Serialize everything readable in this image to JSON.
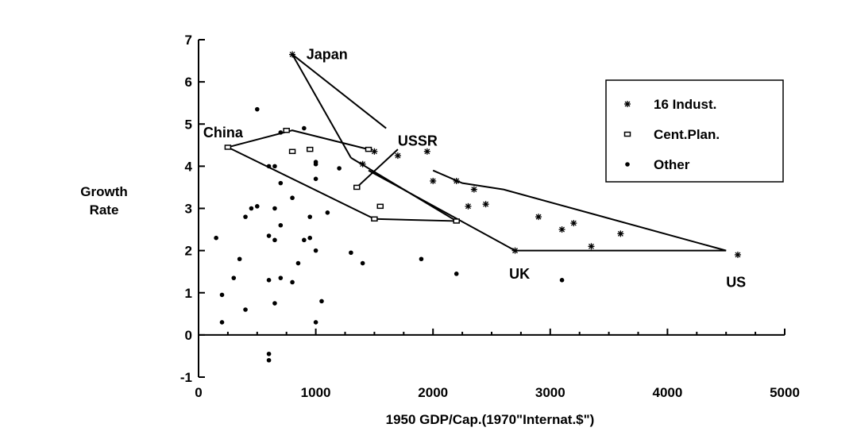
{
  "chart_data": {
    "type": "scatter",
    "title": "",
    "xlabel": "1950 GDP/Cap.(1970\"Internat.$\")",
    "ylabel_lines": [
      "Growth",
      "Rate"
    ],
    "xlim": [
      0,
      5000
    ],
    "ylim": [
      -1,
      7
    ],
    "x_ticks": [
      0,
      1000,
      2000,
      3000,
      4000,
      5000
    ],
    "y_ticks": [
      -1,
      0,
      1,
      2,
      3,
      4,
      5,
      6,
      7
    ],
    "legend_position": "top-right",
    "series": [
      {
        "name": "16 Indust.",
        "marker": "star",
        "points": [
          [
            800,
            6.65
          ],
          [
            1400,
            4.05
          ],
          [
            1500,
            4.35
          ],
          [
            1700,
            4.25
          ],
          [
            1950,
            4.35
          ],
          [
            2000,
            3.65
          ],
          [
            2200,
            3.65
          ],
          [
            2350,
            3.45
          ],
          [
            2300,
            3.05
          ],
          [
            2450,
            3.1
          ],
          [
            2700,
            2.0
          ],
          [
            2900,
            2.8
          ],
          [
            3100,
            2.5
          ],
          [
            3200,
            2.65
          ],
          [
            3350,
            2.1
          ],
          [
            3600,
            2.4
          ],
          [
            4600,
            1.9
          ]
        ]
      },
      {
        "name": "Cent.Plan.",
        "marker": "square",
        "points": [
          [
            250,
            4.45
          ],
          [
            750,
            4.85
          ],
          [
            1450,
            4.4
          ],
          [
            800,
            4.35
          ],
          [
            950,
            4.4
          ],
          [
            1350,
            3.5
          ],
          [
            1550,
            3.05
          ],
          [
            1500,
            2.75
          ],
          [
            2200,
            2.7
          ]
        ]
      },
      {
        "name": "Other",
        "marker": "dot",
        "points": [
          [
            500,
            5.35
          ],
          [
            900,
            4.9
          ],
          [
            700,
            4.8
          ],
          [
            650,
            4.0
          ],
          [
            1000,
            4.05
          ],
          [
            1000,
            4.1
          ],
          [
            1200,
            3.95
          ],
          [
            600,
            4.0
          ],
          [
            700,
            3.6
          ],
          [
            1000,
            3.7
          ],
          [
            450,
            3.0
          ],
          [
            500,
            3.05
          ],
          [
            650,
            3.0
          ],
          [
            800,
            3.25
          ],
          [
            1100,
            2.9
          ],
          [
            400,
            2.8
          ],
          [
            700,
            2.6
          ],
          [
            950,
            2.8
          ],
          [
            150,
            2.3
          ],
          [
            600,
            2.35
          ],
          [
            650,
            2.25
          ],
          [
            900,
            2.25
          ],
          [
            950,
            2.3
          ],
          [
            1000,
            2.0
          ],
          [
            1300,
            1.95
          ],
          [
            350,
            1.8
          ],
          [
            850,
            1.7
          ],
          [
            1400,
            1.7
          ],
          [
            1900,
            1.8
          ],
          [
            2200,
            1.45
          ],
          [
            300,
            1.35
          ],
          [
            600,
            1.3
          ],
          [
            700,
            1.35
          ],
          [
            800,
            1.25
          ],
          [
            3100,
            1.3
          ],
          [
            200,
            0.95
          ],
          [
            650,
            0.75
          ],
          [
            400,
            0.6
          ],
          [
            1050,
            0.8
          ],
          [
            200,
            0.3
          ],
          [
            1000,
            0.3
          ],
          [
            600,
            -0.45
          ],
          [
            600,
            -0.6
          ]
        ]
      }
    ],
    "polygons": [
      {
        "points": [
          [
            800,
            6.65
          ],
          [
            1300,
            4.2
          ]
        ]
      },
      {
        "points": [
          [
            800,
            6.65
          ],
          [
            1600,
            4.9
          ]
        ]
      },
      {
        "points": [
          [
            1350,
            3.5
          ],
          [
            1700,
            4.4
          ]
        ]
      },
      {
        "points": [
          [
            1300,
            4.2
          ],
          [
            2200,
            2.7
          ]
        ]
      },
      {
        "points": [
          [
            1450,
            3.9
          ],
          [
            2700,
            2.0
          ]
        ]
      },
      {
        "points": [
          [
            2000,
            3.9
          ],
          [
            2250,
            3.6
          ],
          [
            2600,
            3.45
          ],
          [
            4500,
            2.0
          ]
        ]
      },
      {
        "points": [
          [
            2700,
            2.0
          ],
          [
            3600,
            2.0
          ],
          [
            4500,
            2.0
          ]
        ]
      },
      {
        "points": [
          [
            250,
            4.45
          ],
          [
            800,
            4.85
          ],
          [
            1450,
            4.4
          ]
        ]
      },
      {
        "points": [
          [
            250,
            4.45
          ],
          [
            1500,
            2.75
          ],
          [
            2200,
            2.7
          ]
        ]
      }
    ],
    "annotations": [
      {
        "text": "Japan",
        "x": 920,
        "y": 6.65
      },
      {
        "text": "China",
        "x": 40,
        "y": 4.8
      },
      {
        "text": "USSR",
        "x": 1700,
        "y": 4.6
      },
      {
        "text": "UK",
        "x": 2650,
        "y": 1.45
      },
      {
        "text": "US",
        "x": 4500,
        "y": 1.25
      }
    ]
  }
}
